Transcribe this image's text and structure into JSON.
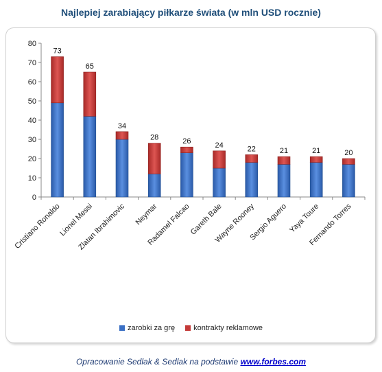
{
  "chart_data": {
    "type": "bar",
    "stacked": true,
    "title": "Najlepiej zarabiający piłkarze świata (w mln USD rocznie)",
    "categories": [
      "Cristiano Ronaldo",
      "Lionel Messi",
      "Zlatan Ibrahimovic",
      "Neymar",
      "Radamel Falcao",
      "Gareth Bale",
      "Wayne Rooney",
      "Sergio Aguero",
      "Yaya Toure",
      "Fernando Torres"
    ],
    "series": [
      {
        "name": "zarobki za grę",
        "color": "#3a6fc4",
        "values": [
          49,
          42,
          30,
          12,
          23,
          15,
          18,
          17,
          18,
          17
        ]
      },
      {
        "name": "kontrakty reklamowe",
        "color": "#c43a38",
        "values": [
          24,
          23,
          4,
          16,
          3,
          9,
          4,
          4,
          3,
          3
        ]
      }
    ],
    "totals": [
      73,
      65,
      34,
      28,
      26,
      24,
      22,
      21,
      21,
      20
    ],
    "ylim": [
      0,
      80
    ],
    "yticks": [
      0,
      10,
      20,
      30,
      40,
      50,
      60,
      70,
      80
    ],
    "grid": false,
    "legend": "bottom"
  },
  "footer": {
    "text": "Opracowanie Sedlak & Sedlak na podstawie ",
    "link": "www.forbes.com"
  }
}
